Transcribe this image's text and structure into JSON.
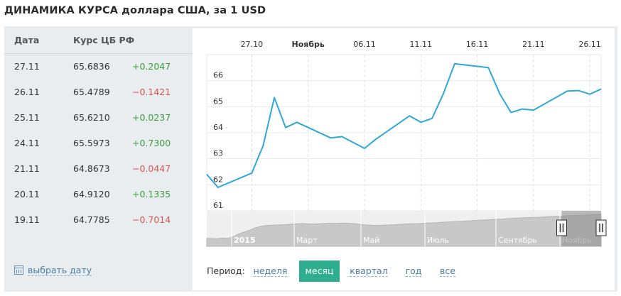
{
  "title": "ДИНАМИКА КУРСА доллара США, за 1 USD",
  "table": {
    "headers": {
      "date": "Дата",
      "rate": "Курс ЦБ РФ"
    },
    "rows": [
      {
        "date": "27.11",
        "rate": "65.6836",
        "change": "+0.2047"
      },
      {
        "date": "26.11",
        "rate": "65.4789",
        "change": "−0.1421"
      },
      {
        "date": "25.11",
        "rate": "65.6210",
        "change": "+0.0237"
      },
      {
        "date": "24.11",
        "rate": "65.5973",
        "change": "+0.7300"
      },
      {
        "date": "21.11",
        "rate": "64.8673",
        "change": "−0.0447"
      },
      {
        "date": "20.11",
        "rate": "64.9120",
        "change": "+0.1335"
      },
      {
        "date": "19.11",
        "rate": "64.7785",
        "change": "−0.7014"
      }
    ],
    "colors": {
      "positive": "#3a9e3a",
      "negative": "#d9534f"
    }
  },
  "pick_date": {
    "label": "выбрать дату",
    "icon": "calendar-icon"
  },
  "period": {
    "label": "Период:",
    "options": [
      "неделя",
      "месяц",
      "квартал",
      "год",
      "все"
    ],
    "selected": "месяц",
    "active_color": "#2fae8f"
  },
  "chart_data": {
    "type": "line",
    "x": [
      "2015-10-23",
      "2015-10-24",
      "2015-10-27",
      "2015-10-28",
      "2015-10-29",
      "2015-10-30",
      "2015-10-31",
      "2015-11-03",
      "2015-11-04",
      "2015-11-06",
      "2015-11-07",
      "2015-11-10",
      "2015-11-11",
      "2015-11-12",
      "2015-11-13",
      "2015-11-14",
      "2015-11-17",
      "2015-11-18",
      "2015-11-19",
      "2015-11-20",
      "2015-11-21",
      "2015-11-24",
      "2015-11-25",
      "2015-11-26",
      "2015-11-27"
    ],
    "series": [
      {
        "values": [
          62.4,
          61.9,
          62.45,
          63.5,
          65.35,
          64.2,
          64.4,
          63.8,
          63.85,
          63.4,
          63.75,
          64.65,
          64.4,
          64.55,
          65.5,
          66.65,
          66.5,
          65.5,
          64.78,
          64.91,
          64.87,
          65.6,
          65.62,
          65.48,
          65.68
        ],
        "color": "#2fa7d7"
      }
    ],
    "x_ticks": [
      "27.10",
      "Ноябрь",
      "06.11",
      "11.11",
      "16.11",
      "21.11",
      "26.11"
    ],
    "y_ticks": [
      61,
      62,
      63,
      64,
      65,
      66
    ],
    "ylim": [
      61,
      67
    ],
    "grid": true,
    "navigator": {
      "labels": [
        "2015",
        "Март",
        "Май",
        "Июль",
        "Сентябрь",
        "Ноябрь"
      ],
      "values": [
        33.5,
        33.2,
        33.0,
        34.0,
        33.6,
        36.5,
        41.0,
        44.0,
        47.0,
        51.0,
        53.5,
        55.0,
        55.5,
        56.0,
        56.5,
        57.0,
        57.5,
        58.0,
        58.5,
        58.0,
        57.5,
        58.0,
        58.5,
        59.0,
        58.8,
        59.0,
        59.2,
        58.8,
        58.0,
        57.0,
        56.0,
        55.5,
        55.0,
        55.5,
        56.0,
        56.5,
        57.0,
        57.5,
        58.0,
        58.0,
        58.5,
        59.0,
        59.5,
        60.0,
        60.5,
        61.0,
        61.5,
        62.0,
        62.5,
        63.0,
        63.5,
        64.0,
        64.5,
        65.0,
        65.5,
        66.0,
        66.5,
        67.0,
        67.5,
        68.0,
        68.5,
        69.0,
        69.0,
        69.5,
        70.0,
        70.5,
        71.0,
        71.5,
        72.0,
        72.0,
        72.5,
        72.8,
        73.0,
        73.5,
        74.0
      ],
      "ylim": [
        20,
        80
      ],
      "selection_fraction": [
        0.9,
        1.0
      ]
    }
  }
}
